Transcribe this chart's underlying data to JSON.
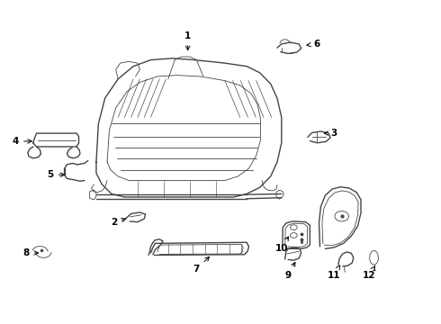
{
  "background_color": "#ffffff",
  "line_color": "#444444",
  "label_color": "#000000",
  "fig_width": 4.9,
  "fig_height": 3.6,
  "dpi": 100,
  "label_positions": {
    "1": [
      0.425,
      0.895,
      0.425,
      0.84
    ],
    "2": [
      0.255,
      0.31,
      0.29,
      0.325
    ],
    "3": [
      0.76,
      0.59,
      0.73,
      0.59
    ],
    "4": [
      0.03,
      0.565,
      0.075,
      0.565
    ],
    "5": [
      0.11,
      0.46,
      0.15,
      0.46
    ],
    "6": [
      0.72,
      0.87,
      0.69,
      0.865
    ],
    "7": [
      0.445,
      0.165,
      0.48,
      0.21
    ],
    "8": [
      0.055,
      0.215,
      0.09,
      0.215
    ],
    "9": [
      0.655,
      0.145,
      0.675,
      0.195
    ],
    "10": [
      0.64,
      0.23,
      0.66,
      0.275
    ],
    "11": [
      0.76,
      0.145,
      0.778,
      0.185
    ],
    "12": [
      0.84,
      0.145,
      0.855,
      0.175
    ]
  }
}
